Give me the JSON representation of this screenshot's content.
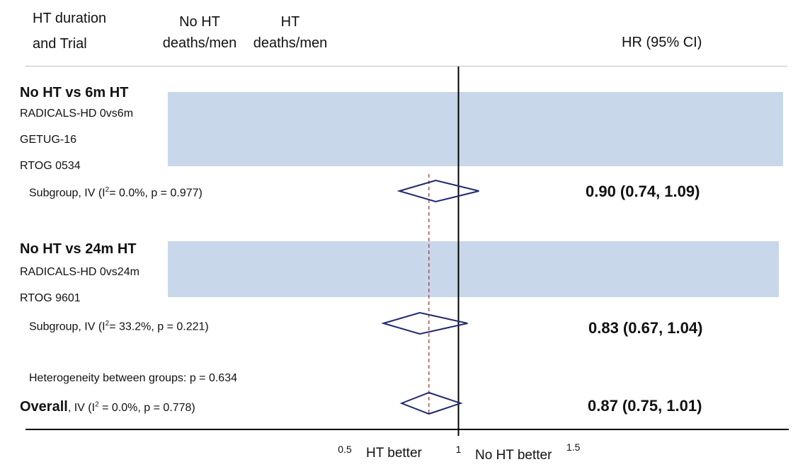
{
  "header": {
    "trial_label_line1": "HT duration",
    "trial_label_line2": "and Trial",
    "no_ht_line1": "No HT",
    "no_ht_line2": "deaths/men",
    "ht_line1": "HT",
    "ht_line2": "deaths/men",
    "hr_label": "HR (95% CI)"
  },
  "groups": [
    {
      "title": "No HT vs 6m HT",
      "studies": [
        "RADICALS-HD 0vs6m",
        "GETUG-16",
        "RTOG 0534"
      ],
      "subgroup_prefix": "Subgroup, IV (I",
      "subgroup_suffix": "= 0.0%, p = 0.977)",
      "hr_text": "0.90 (0.74, 1.09)"
    },
    {
      "title": "No HT vs 24m HT",
      "studies": [
        "RADICALS-HD 0vs24m",
        "RTOG 9601"
      ],
      "subgroup_prefix": "Subgroup, IV (I",
      "subgroup_suffix": "= 33.2%, p = 0.221)",
      "hr_text": "0.83 (0.67, 1.04)"
    }
  ],
  "heterogeneity": "Heterogeneity between groups: p = 0.634",
  "overall": {
    "label_bold": "Overall",
    "label_prefix": ", IV (I",
    "label_suffix": " = 0.0%, p = 0.778)",
    "hr_text": "0.87 (0.75, 1.01)"
  },
  "superscript": "2",
  "axis": {
    "ticks": [
      "0.5",
      "1",
      "1.5"
    ],
    "left_label": "HT better",
    "right_label": "No HT better"
  },
  "colors": {
    "diamond": "#1f2a6e",
    "mask": "#c9d7ea",
    "reference": "#a03a3a",
    "line": "#000000"
  },
  "chart_data": {
    "type": "forest",
    "x_scale": "linear",
    "xlim": [
      0.5,
      1.5
    ],
    "null_value": 1,
    "axis_ticks": [
      0.5,
      1,
      1.5
    ],
    "pooled_reference": 0.87,
    "estimates": [
      {
        "label": "Subgroup (No HT vs 6m HT)",
        "hr": 0.9,
        "lower": 0.74,
        "upper": 1.09
      },
      {
        "label": "Subgroup (No HT vs 24m HT)",
        "hr": 0.83,
        "lower": 0.67,
        "upper": 1.04
      },
      {
        "label": "Overall",
        "hr": 0.87,
        "lower": 0.75,
        "upper": 1.01
      }
    ]
  }
}
